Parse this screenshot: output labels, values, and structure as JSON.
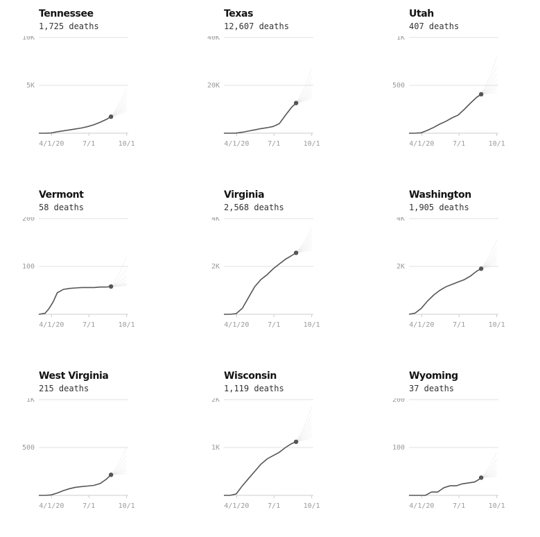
{
  "colors": {
    "line": "#555555",
    "projection": "#cfcfcf",
    "grid": "#e2e2e2",
    "tick_text": "#999999"
  },
  "chart_data": [
    {
      "type": "line",
      "state": "Tennessee",
      "deaths_label": "1,725 deaths",
      "yticks": [
        {
          "value": 5000,
          "label": "5K"
        },
        {
          "value": 10000,
          "label": "10K"
        }
      ],
      "ylim": [
        0,
        10000
      ],
      "xticks": [
        {
          "value": "2020-04-01",
          "label": "4/1/20"
        },
        {
          "value": "2020-07-01",
          "label": "7/1"
        },
        {
          "value": "2020-10-01",
          "label": "10/1"
        }
      ],
      "xlim": [
        "2020-03-01",
        "2020-10-05"
      ],
      "x": [
        "2020-03-01",
        "2020-03-16",
        "2020-03-31",
        "2020-04-15",
        "2020-04-30",
        "2020-05-15",
        "2020-05-30",
        "2020-06-14",
        "2020-06-29",
        "2020-07-14",
        "2020-07-29",
        "2020-08-13",
        "2020-08-24"
      ],
      "y": [
        0,
        0,
        20,
        150,
        250,
        350,
        450,
        550,
        700,
        900,
        1150,
        1450,
        1725
      ],
      "projection_end": [
        "2020-10-01",
        [
          2300,
          2500,
          2700,
          2950,
          3200,
          3600,
          4100,
          4700
        ]
      ]
    },
    {
      "type": "line",
      "state": "Texas",
      "deaths_label": "12,607 deaths",
      "yticks": [
        {
          "value": 20000,
          "label": "20K"
        },
        {
          "value": 40000,
          "label": "40K"
        }
      ],
      "ylim": [
        0,
        40000
      ],
      "xticks": [
        {
          "value": "2020-04-01",
          "label": "4/1/20"
        },
        {
          "value": "2020-07-01",
          "label": "7/1"
        },
        {
          "value": "2020-10-01",
          "label": "10/1"
        }
      ],
      "xlim": [
        "2020-03-01",
        "2020-10-05"
      ],
      "x": [
        "2020-03-01",
        "2020-03-16",
        "2020-03-31",
        "2020-04-15",
        "2020-04-30",
        "2020-05-15",
        "2020-05-30",
        "2020-06-14",
        "2020-06-29",
        "2020-07-14",
        "2020-07-29",
        "2020-08-13",
        "2020-08-24"
      ],
      "y": [
        0,
        0,
        50,
        400,
        900,
        1400,
        1900,
        2300,
        2800,
        4000,
        7500,
        10800,
        12607
      ],
      "projection_end": [
        "2020-10-01",
        [
          14500,
          15500,
          16500,
          17500,
          19000,
          21000,
          23500,
          27000
        ]
      ]
    },
    {
      "type": "line",
      "state": "Utah",
      "deaths_label": "407 deaths",
      "yticks": [
        {
          "value": 500,
          "label": "500"
        },
        {
          "value": 1000,
          "label": "1K"
        }
      ],
      "ylim": [
        0,
        1000
      ],
      "xticks": [
        {
          "value": "2020-04-01",
          "label": "4/1/20"
        },
        {
          "value": "2020-07-01",
          "label": "7/1"
        },
        {
          "value": "2020-10-01",
          "label": "10/1"
        }
      ],
      "xlim": [
        "2020-03-01",
        "2020-10-05"
      ],
      "x": [
        "2020-03-01",
        "2020-03-16",
        "2020-03-31",
        "2020-04-15",
        "2020-04-30",
        "2020-05-15",
        "2020-05-30",
        "2020-06-14",
        "2020-06-29",
        "2020-07-14",
        "2020-07-29",
        "2020-08-13",
        "2020-08-24"
      ],
      "y": [
        0,
        0,
        5,
        30,
        60,
        95,
        125,
        160,
        190,
        250,
        315,
        375,
        407
      ],
      "projection_end": [
        "2020-10-01",
        [
          430,
          460,
          490,
          520,
          560,
          620,
          700,
          800
        ]
      ]
    },
    {
      "type": "line",
      "state": "Vermont",
      "deaths_label": "58 deaths",
      "yticks": [
        {
          "value": 100,
          "label": "100"
        },
        {
          "value": 200,
          "label": "200"
        }
      ],
      "ylim": [
        0,
        200
      ],
      "xticks": [
        {
          "value": "2020-04-01",
          "label": "4/1/20"
        },
        {
          "value": "2020-07-01",
          "label": "7/1"
        },
        {
          "value": "2020-10-01",
          "label": "10/1"
        }
      ],
      "xlim": [
        "2020-03-01",
        "2020-10-05"
      ],
      "x": [
        "2020-03-01",
        "2020-03-16",
        "2020-03-26",
        "2020-04-05",
        "2020-04-15",
        "2020-04-30",
        "2020-05-15",
        "2020-05-30",
        "2020-06-14",
        "2020-06-29",
        "2020-07-14",
        "2020-07-29",
        "2020-08-13",
        "2020-08-24"
      ],
      "y": [
        0,
        2,
        12,
        26,
        45,
        52,
        54,
        55,
        56,
        56,
        56,
        57,
        57,
        58
      ],
      "projection_end": [
        "2020-10-01",
        [
          60,
          62,
          64,
          67,
          72,
          80,
          95,
          120
        ]
      ]
    },
    {
      "type": "line",
      "state": "Virginia",
      "deaths_label": "2,568 deaths",
      "yticks": [
        {
          "value": 2000,
          "label": "2K"
        },
        {
          "value": 4000,
          "label": "4K"
        }
      ],
      "ylim": [
        0,
        4000
      ],
      "xticks": [
        {
          "value": "2020-04-01",
          "label": "4/1/20"
        },
        {
          "value": "2020-07-01",
          "label": "7/1"
        },
        {
          "value": "2020-10-01",
          "label": "10/1"
        }
      ],
      "xlim": [
        "2020-03-01",
        "2020-10-05"
      ],
      "x": [
        "2020-03-01",
        "2020-03-16",
        "2020-03-31",
        "2020-04-15",
        "2020-04-30",
        "2020-05-15",
        "2020-05-30",
        "2020-06-14",
        "2020-06-29",
        "2020-07-14",
        "2020-07-29",
        "2020-08-13",
        "2020-08-24"
      ],
      "y": [
        0,
        0,
        30,
        250,
        700,
        1150,
        1450,
        1650,
        1900,
        2100,
        2300,
        2450,
        2568
      ],
      "projection_end": [
        "2020-10-01",
        [
          2700,
          2800,
          2900,
          3000,
          3100,
          3250,
          3400,
          3600
        ]
      ]
    },
    {
      "type": "line",
      "state": "Washington",
      "deaths_label": "1,905 deaths",
      "yticks": [
        {
          "value": 2000,
          "label": "2K"
        },
        {
          "value": 4000,
          "label": "4K"
        }
      ],
      "ylim": [
        0,
        4000
      ],
      "xticks": [
        {
          "value": "2020-04-01",
          "label": "4/1/20"
        },
        {
          "value": "2020-07-01",
          "label": "7/1"
        },
        {
          "value": "2020-10-01",
          "label": "10/1"
        }
      ],
      "xlim": [
        "2020-03-01",
        "2020-10-05"
      ],
      "x": [
        "2020-03-01",
        "2020-03-16",
        "2020-03-31",
        "2020-04-15",
        "2020-04-30",
        "2020-05-15",
        "2020-05-30",
        "2020-06-14",
        "2020-06-29",
        "2020-07-14",
        "2020-07-29",
        "2020-08-13",
        "2020-08-24"
      ],
      "y": [
        0,
        50,
        250,
        550,
        800,
        1000,
        1150,
        1250,
        1350,
        1450,
        1600,
        1800,
        1905
      ],
      "projection_end": [
        "2020-10-01",
        [
          2050,
          2150,
          2250,
          2350,
          2450,
          2600,
          2800,
          3100
        ]
      ]
    },
    {
      "type": "line",
      "state": "West Virginia",
      "deaths_label": "215 deaths",
      "yticks": [
        {
          "value": 500,
          "label": "500"
        },
        {
          "value": 1000,
          "label": "1K"
        }
      ],
      "ylim": [
        0,
        1000
      ],
      "xticks": [
        {
          "value": "2020-04-01",
          "label": "4/1/20"
        },
        {
          "value": "2020-07-01",
          "label": "7/1"
        },
        {
          "value": "2020-10-01",
          "label": "10/1"
        }
      ],
      "xlim": [
        "2020-03-01",
        "2020-10-05"
      ],
      "x": [
        "2020-03-01",
        "2020-03-16",
        "2020-03-31",
        "2020-04-15",
        "2020-04-30",
        "2020-05-15",
        "2020-05-30",
        "2020-06-14",
        "2020-06-29",
        "2020-07-14",
        "2020-07-29",
        "2020-08-13",
        "2020-08-24"
      ],
      "y": [
        0,
        0,
        5,
        25,
        50,
        70,
        85,
        92,
        98,
        105,
        125,
        170,
        215
      ],
      "projection_end": [
        "2020-10-01",
        [
          230,
          250,
          270,
          290,
          320,
          360,
          420,
          500
        ]
      ]
    },
    {
      "type": "line",
      "state": "Wisconsin",
      "deaths_label": "1,119 deaths",
      "yticks": [
        {
          "value": 1000,
          "label": "1K"
        },
        {
          "value": 2000,
          "label": "2K"
        }
      ],
      "ylim": [
        0,
        2000
      ],
      "xticks": [
        {
          "value": "2020-04-01",
          "label": "4/1/20"
        },
        {
          "value": "2020-07-01",
          "label": "7/1"
        },
        {
          "value": "2020-10-01",
          "label": "10/1"
        }
      ],
      "xlim": [
        "2020-03-01",
        "2020-10-05"
      ],
      "x": [
        "2020-03-01",
        "2020-03-16",
        "2020-03-31",
        "2020-04-15",
        "2020-04-30",
        "2020-05-15",
        "2020-05-30",
        "2020-06-14",
        "2020-06-29",
        "2020-07-14",
        "2020-07-29",
        "2020-08-13",
        "2020-08-24"
      ],
      "y": [
        0,
        0,
        30,
        200,
        350,
        500,
        650,
        760,
        830,
        900,
        1000,
        1080,
        1119
      ],
      "projection_end": [
        "2020-10-01",
        [
          1200,
          1250,
          1300,
          1380,
          1450,
          1550,
          1680,
          1850
        ]
      ]
    },
    {
      "type": "line",
      "state": "Wyoming",
      "deaths_label": "37 deaths",
      "yticks": [
        {
          "value": 100,
          "label": "100"
        },
        {
          "value": 200,
          "label": "200"
        }
      ],
      "ylim": [
        0,
        200
      ],
      "xticks": [
        {
          "value": "2020-04-01",
          "label": "4/1/20"
        },
        {
          "value": "2020-07-01",
          "label": "7/1"
        },
        {
          "value": "2020-10-01",
          "label": "10/1"
        }
      ],
      "xlim": [
        "2020-03-01",
        "2020-10-05"
      ],
      "x": [
        "2020-03-01",
        "2020-03-16",
        "2020-03-31",
        "2020-04-10",
        "2020-04-25",
        "2020-05-10",
        "2020-05-25",
        "2020-06-09",
        "2020-06-24",
        "2020-07-09",
        "2020-07-24",
        "2020-08-08",
        "2020-08-18",
        "2020-08-24"
      ],
      "y": [
        0,
        0,
        0,
        0,
        7,
        7,
        16,
        20,
        20,
        24,
        26,
        28,
        33,
        37
      ],
      "projection_end": [
        "2020-10-01",
        [
          40,
          44,
          48,
          53,
          58,
          65,
          75,
          90
        ]
      ]
    }
  ]
}
